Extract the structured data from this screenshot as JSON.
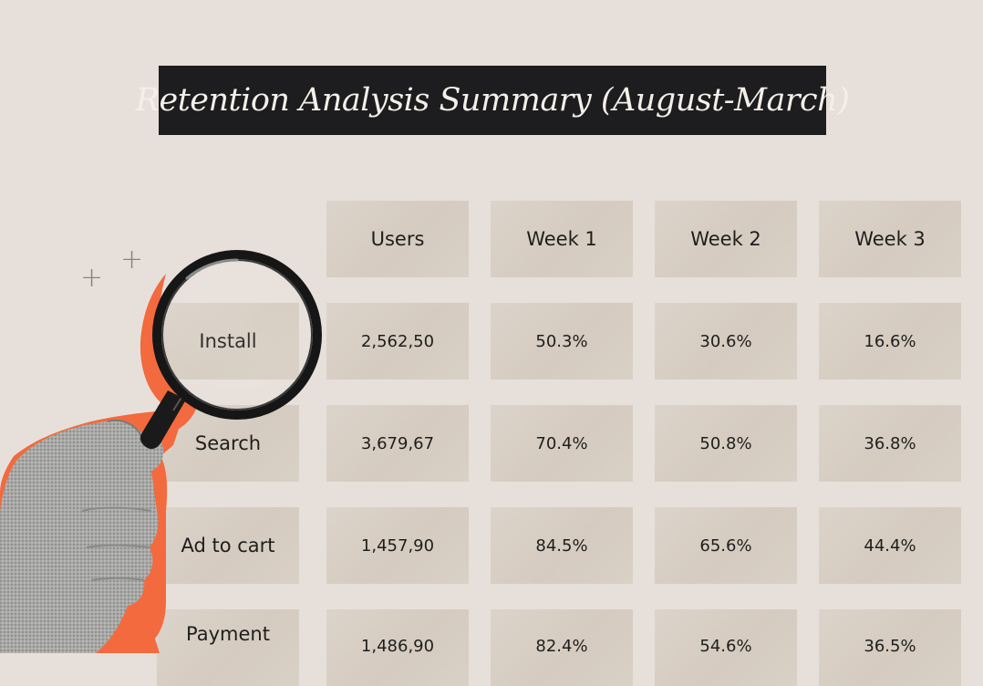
{
  "title": "Retention Analysis Summary (August-March)",
  "columns": [
    "Users",
    "Week 1",
    "Week 2",
    "Week 3"
  ],
  "rows": [
    {
      "label": "Install",
      "users": "2,562,50",
      "w1": "50.3%",
      "w2": "30.6%",
      "w3": "16.6%"
    },
    {
      "label": "Search",
      "users": "3,679,67",
      "w1": "70.4%",
      "w2": "50.8%",
      "w3": "36.8%"
    },
    {
      "label": "Ad to cart",
      "users": "1,457,90",
      "w1": "84.5%",
      "w2": "65.6%",
      "w3": "44.4%"
    },
    {
      "label": "Payment",
      "users": "1,486,90",
      "w1": "82.4%",
      "w2": "54.6%",
      "w3": "36.5%"
    }
  ],
  "colors": {
    "background": "#e7e0da",
    "title_bar": "#1d1d1f",
    "accent": "#f26a3d"
  },
  "icons": [
    "magnifying-glass-icon",
    "hand-illustration",
    "plus-icon"
  ]
}
